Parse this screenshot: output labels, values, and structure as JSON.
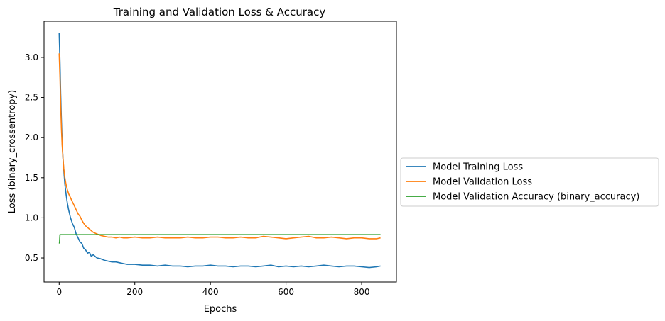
{
  "chart_data": {
    "type": "line",
    "title": "Training and Validation Loss & Accuracy",
    "xlabel": "Epochs",
    "ylabel": "Loss (binary_crossentropy)",
    "xlim": [
      -40,
      892
    ],
    "ylim": [
      0.2,
      3.45
    ],
    "xticks": [
      0,
      200,
      400,
      600,
      800
    ],
    "yticks": [
      0.5,
      1.0,
      1.5,
      2.0,
      2.5,
      3.0
    ],
    "xtick_labels": [
      "0",
      "200",
      "400",
      "600",
      "800"
    ],
    "ytick_labels": [
      "0.5",
      "1.0",
      "1.5",
      "2.0",
      "2.5",
      "3.0"
    ],
    "grid": false,
    "legend_position": "outside right, center",
    "series": [
      {
        "name": "Model Training Loss",
        "color": "#1f77b4",
        "x": [
          0,
          2,
          4,
          6,
          8,
          10,
          12,
          15,
          18,
          21,
          25,
          30,
          35,
          40,
          45,
          50,
          55,
          60,
          65,
          70,
          75,
          80,
          85,
          90,
          100,
          110,
          120,
          130,
          140,
          150,
          160,
          170,
          180,
          200,
          220,
          240,
          260,
          280,
          300,
          320,
          340,
          360,
          380,
          400,
          420,
          440,
          460,
          480,
          500,
          520,
          540,
          560,
          580,
          600,
          620,
          640,
          660,
          680,
          700,
          720,
          740,
          760,
          780,
          800,
          820,
          840,
          850
        ],
        "values": [
          3.3,
          2.95,
          2.55,
          2.2,
          1.95,
          1.75,
          1.6,
          1.42,
          1.3,
          1.2,
          1.1,
          1.0,
          0.93,
          0.88,
          0.8,
          0.75,
          0.7,
          0.68,
          0.62,
          0.6,
          0.56,
          0.57,
          0.52,
          0.54,
          0.5,
          0.49,
          0.47,
          0.46,
          0.45,
          0.45,
          0.44,
          0.43,
          0.42,
          0.42,
          0.41,
          0.41,
          0.4,
          0.41,
          0.4,
          0.4,
          0.39,
          0.4,
          0.4,
          0.41,
          0.4,
          0.4,
          0.39,
          0.4,
          0.4,
          0.39,
          0.4,
          0.41,
          0.39,
          0.4,
          0.39,
          0.4,
          0.39,
          0.4,
          0.41,
          0.4,
          0.39,
          0.4,
          0.4,
          0.39,
          0.38,
          0.39,
          0.4
        ]
      },
      {
        "name": "Model Validation Loss",
        "color": "#ff7f0e",
        "x": [
          0,
          2,
          4,
          6,
          8,
          10,
          12,
          15,
          18,
          21,
          25,
          30,
          35,
          40,
          45,
          50,
          55,
          60,
          65,
          70,
          75,
          80,
          85,
          90,
          100,
          110,
          120,
          130,
          140,
          150,
          160,
          170,
          180,
          200,
          220,
          240,
          260,
          280,
          300,
          320,
          340,
          360,
          380,
          400,
          420,
          440,
          460,
          480,
          500,
          520,
          540,
          560,
          580,
          600,
          620,
          640,
          660,
          680,
          700,
          720,
          740,
          760,
          780,
          800,
          820,
          840,
          850
        ],
        "values": [
          3.05,
          2.75,
          2.4,
          2.1,
          1.9,
          1.75,
          1.62,
          1.5,
          1.42,
          1.36,
          1.3,
          1.25,
          1.2,
          1.15,
          1.1,
          1.05,
          1.02,
          0.97,
          0.93,
          0.9,
          0.88,
          0.86,
          0.84,
          0.82,
          0.8,
          0.78,
          0.77,
          0.76,
          0.76,
          0.75,
          0.76,
          0.75,
          0.75,
          0.76,
          0.75,
          0.75,
          0.76,
          0.75,
          0.75,
          0.75,
          0.76,
          0.75,
          0.75,
          0.76,
          0.76,
          0.75,
          0.75,
          0.76,
          0.75,
          0.75,
          0.77,
          0.76,
          0.75,
          0.74,
          0.75,
          0.76,
          0.77,
          0.75,
          0.75,
          0.76,
          0.75,
          0.74,
          0.75,
          0.75,
          0.74,
          0.74,
          0.75
        ]
      },
      {
        "name": "Model Validation Accuracy (binary_accuracy)",
        "color": "#2ca02c",
        "x": [
          0,
          1,
          2,
          3,
          850
        ],
        "values": [
          0.68,
          0.69,
          0.79,
          0.79,
          0.79
        ]
      }
    ]
  }
}
